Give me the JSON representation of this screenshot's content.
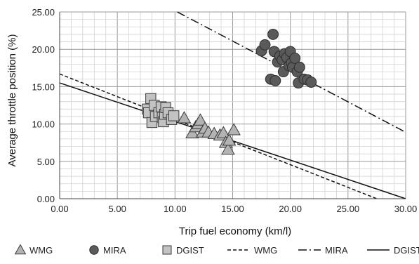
{
  "chart_data": {
    "type": "scatter",
    "title": "",
    "xlabel": "Trip fuel economy (km/l)",
    "ylabel": "Average throttle position (%)",
    "xlim": [
      0,
      30
    ],
    "ylim": [
      0,
      25
    ],
    "xticks": [
      "0.00",
      "5.00",
      "10.00",
      "15.00",
      "20.00",
      "25.00",
      "30.00"
    ],
    "yticks": [
      "0.00",
      "5.00",
      "10.00",
      "15.00",
      "20.00",
      "25.00"
    ],
    "grid": true,
    "legend_position": "bottom",
    "series": [
      {
        "name": "WMG",
        "kind": "points",
        "marker": "triangle",
        "color": "#b3b3b3",
        "points": [
          [
            10.8,
            10.8
          ],
          [
            11.5,
            8.8
          ],
          [
            11.8,
            9.6
          ],
          [
            12.0,
            10.0
          ],
          [
            12.2,
            10.5
          ],
          [
            12.4,
            8.9
          ],
          [
            12.6,
            9.4
          ],
          [
            12.9,
            8.9
          ],
          [
            13.4,
            8.7
          ],
          [
            13.9,
            8.5
          ],
          [
            14.2,
            8.8
          ],
          [
            14.4,
            7.5
          ],
          [
            14.6,
            6.6
          ],
          [
            14.7,
            7.8
          ],
          [
            15.1,
            9.2
          ]
        ]
      },
      {
        "name": "MIRA",
        "kind": "points",
        "marker": "circle",
        "color": "#5a5a5a",
        "points": [
          [
            17.5,
            19.8
          ],
          [
            17.8,
            20.6
          ],
          [
            18.3,
            16.0
          ],
          [
            18.5,
            22.0
          ],
          [
            18.6,
            19.7
          ],
          [
            18.7,
            15.8
          ],
          [
            18.9,
            18.3
          ],
          [
            19.1,
            19.1
          ],
          [
            19.3,
            18.6
          ],
          [
            19.4,
            17.0
          ],
          [
            19.5,
            19.4
          ],
          [
            19.7,
            18.9
          ],
          [
            19.9,
            17.8
          ],
          [
            20.0,
            19.7
          ],
          [
            20.1,
            18.2
          ],
          [
            20.2,
            17.6
          ],
          [
            20.4,
            18.8
          ],
          [
            20.6,
            17.0
          ],
          [
            20.7,
            15.5
          ],
          [
            20.8,
            17.6
          ],
          [
            21.2,
            16.0
          ],
          [
            21.5,
            15.9
          ],
          [
            21.8,
            15.6
          ]
        ]
      },
      {
        "name": "DGIST",
        "kind": "points",
        "marker": "square",
        "color": "#c2c2c2",
        "points": [
          [
            7.6,
            12.0
          ],
          [
            7.7,
            11.5
          ],
          [
            7.9,
            13.4
          ],
          [
            8.0,
            10.2
          ],
          [
            8.2,
            12.5
          ],
          [
            8.3,
            11.0
          ],
          [
            8.6,
            11.5
          ],
          [
            8.8,
            12.3
          ],
          [
            8.9,
            10.9
          ],
          [
            9.0,
            10.3
          ],
          [
            9.1,
            11.3
          ],
          [
            9.2,
            12.2
          ],
          [
            9.4,
            11.5
          ],
          [
            9.7,
            10.6
          ],
          [
            9.9,
            11.1
          ]
        ]
      },
      {
        "name": "WMG",
        "kind": "line",
        "style": "dashed",
        "color": "#111111",
        "points": [
          [
            0,
            16.7
          ],
          [
            27.5,
            0
          ]
        ]
      },
      {
        "name": "MIRA",
        "kind": "line",
        "style": "dashdot",
        "color": "#111111",
        "points": [
          [
            10.2,
            25
          ],
          [
            30,
            8.9
          ]
        ]
      },
      {
        "name": "DGIST",
        "kind": "line",
        "style": "solid",
        "color": "#111111",
        "points": [
          [
            0,
            15.5
          ],
          [
            30,
            0
          ]
        ]
      }
    ]
  }
}
